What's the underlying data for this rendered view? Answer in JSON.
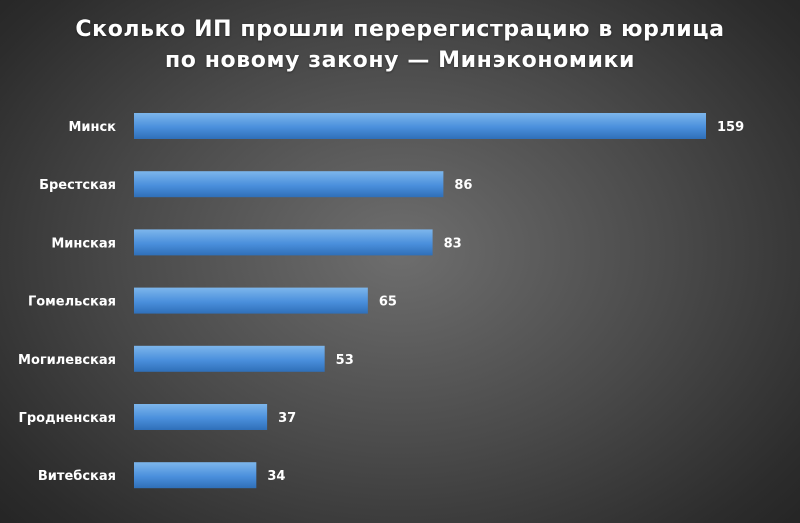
{
  "chart_data": {
    "type": "bar",
    "orientation": "horizontal",
    "title": "Сколько ИП прошли перерегистрацию в юрлица по новому закону — Минэкономики",
    "title_lines": [
      "Сколько ИП прошли перерегистрацию в юрлица",
      "по новому закону — Минэкономики"
    ],
    "categories": [
      "Минск",
      "Брестская",
      "Минская",
      "Гомельская",
      "Могилевская",
      "Гродненская",
      "Витебская"
    ],
    "values": [
      159,
      86,
      83,
      65,
      53,
      37,
      34
    ],
    "value_labels": [
      "159",
      "86",
      "83",
      "65",
      "53",
      "37",
      "34"
    ],
    "xlim": [
      0,
      159
    ],
    "grid": false,
    "legend": "none",
    "colors": {
      "bar_light": "#7db6ec",
      "bar_main": "#4a8fdc",
      "bar_dark": "#2f6fb8",
      "text": "#ffffff"
    }
  }
}
